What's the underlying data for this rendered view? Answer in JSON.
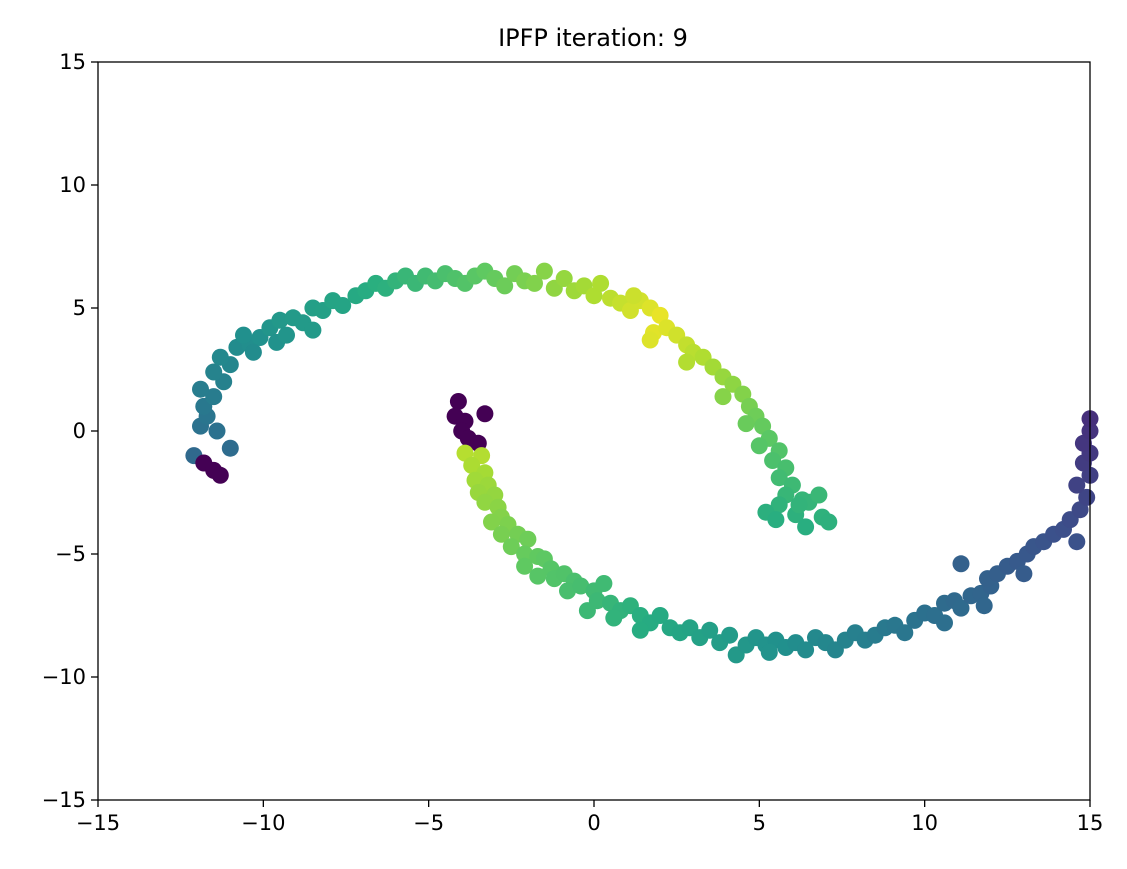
{
  "chart_data": {
    "type": "scatter",
    "title": "IPFP iteration: 9",
    "xlabel": "",
    "ylabel": "",
    "xlim": [
      -15,
      15
    ],
    "ylim": [
      -15,
      15
    ],
    "x_ticks": [
      -15,
      -10,
      -5,
      0,
      5,
      10,
      15
    ],
    "y_ticks": [
      -15,
      -10,
      -5,
      0,
      5,
      10,
      15
    ],
    "x_tick_labels": [
      "−15",
      "−10",
      "−5",
      "0",
      "5",
      "10",
      "15"
    ],
    "y_tick_labels": [
      "−15",
      "−10",
      "−5",
      "0",
      "5",
      "10",
      "15"
    ],
    "grid": false,
    "legend": "none",
    "colormap": "viridis",
    "clusters": [
      {
        "points": [
          [
            -12.1,
            -1.0
          ],
          [
            -11.8,
            -1.3
          ],
          [
            -11.5,
            -1.6
          ],
          [
            -11.3,
            -1.8
          ],
          [
            -11.9,
            0.2
          ],
          [
            -11.7,
            0.6
          ],
          [
            -11.4,
            0.0
          ],
          [
            -11.8,
            1.0
          ],
          [
            -11.5,
            1.4
          ],
          [
            -11.9,
            1.7
          ],
          [
            -11.2,
            2.0
          ],
          [
            -11.5,
            2.4
          ],
          [
            -11.0,
            2.7
          ],
          [
            -11.3,
            3.0
          ],
          [
            -11.0,
            -0.7
          ],
          [
            -10.8,
            3.4
          ],
          [
            -10.4,
            3.5
          ],
          [
            -10.6,
            3.9
          ],
          [
            -10.1,
            3.8
          ],
          [
            -10.3,
            3.2
          ],
          [
            -9.8,
            4.2
          ],
          [
            -9.5,
            4.5
          ],
          [
            -9.1,
            4.6
          ],
          [
            -9.6,
            3.6
          ],
          [
            -9.3,
            3.9
          ],
          [
            -8.8,
            4.4
          ],
          [
            -8.5,
            5.0
          ],
          [
            -8.2,
            4.9
          ],
          [
            -7.9,
            5.3
          ],
          [
            -7.6,
            5.1
          ],
          [
            -8.5,
            4.1
          ],
          [
            -7.2,
            5.5
          ],
          [
            -6.9,
            5.7
          ],
          [
            -6.6,
            6.0
          ],
          [
            -6.3,
            5.8
          ],
          [
            -6.0,
            6.1
          ],
          [
            -5.7,
            6.3
          ],
          [
            -5.4,
            6.0
          ],
          [
            -5.1,
            6.3
          ],
          [
            -4.8,
            6.1
          ],
          [
            -4.5,
            6.4
          ],
          [
            -4.2,
            6.2
          ],
          [
            -3.9,
            6.0
          ],
          [
            -3.6,
            6.3
          ],
          [
            -3.3,
            6.5
          ],
          [
            -3.0,
            6.2
          ],
          [
            -2.7,
            5.9
          ],
          [
            -2.4,
            6.4
          ],
          [
            -2.1,
            6.1
          ],
          [
            -1.8,
            6.0
          ],
          [
            -1.5,
            6.5
          ],
          [
            -1.2,
            5.8
          ],
          [
            -0.9,
            6.2
          ],
          [
            -0.6,
            5.7
          ],
          [
            -0.3,
            5.9
          ],
          [
            0.0,
            5.5
          ],
          [
            0.2,
            6.0
          ],
          [
            0.5,
            5.4
          ],
          [
            0.8,
            5.2
          ],
          [
            1.1,
            4.9
          ],
          [
            1.4,
            5.3
          ],
          [
            1.7,
            5.0
          ],
          [
            1.2,
            5.5
          ],
          [
            2.0,
            4.7
          ],
          [
            1.8,
            4.0
          ],
          [
            2.2,
            4.2
          ],
          [
            2.5,
            3.9
          ],
          [
            2.8,
            3.5
          ],
          [
            1.7,
            3.7
          ],
          [
            3.0,
            3.2
          ],
          [
            3.3,
            3.0
          ],
          [
            2.8,
            2.8
          ],
          [
            3.6,
            2.6
          ],
          [
            3.9,
            2.2
          ],
          [
            4.2,
            1.9
          ],
          [
            3.9,
            1.4
          ],
          [
            4.5,
            1.5
          ],
          [
            4.7,
            1.0
          ],
          [
            4.9,
            0.6
          ],
          [
            4.6,
            0.3
          ],
          [
            5.1,
            0.2
          ],
          [
            5.3,
            -0.3
          ],
          [
            5.0,
            -0.6
          ],
          [
            5.6,
            -0.8
          ],
          [
            5.4,
            -1.2
          ],
          [
            5.8,
            -1.5
          ],
          [
            5.6,
            -1.9
          ],
          [
            6.0,
            -2.2
          ],
          [
            5.8,
            -2.6
          ],
          [
            6.3,
            -2.8
          ],
          [
            5.6,
            -3.0
          ],
          [
            6.5,
            -2.9
          ],
          [
            6.1,
            -3.4
          ],
          [
            5.2,
            -3.3
          ],
          [
            5.5,
            -3.6
          ],
          [
            6.4,
            -3.9
          ],
          [
            6.9,
            -3.5
          ],
          [
            7.1,
            -3.7
          ],
          [
            6.8,
            -2.6
          ],
          [
            6.2,
            -3.0
          ]
        ]
      },
      {
        "points": [
          [
            -4.1,
            1.2
          ],
          [
            -4.2,
            0.6
          ],
          [
            -3.9,
            0.4
          ],
          [
            -4.0,
            0.0
          ],
          [
            -3.3,
            0.7
          ],
          [
            -3.8,
            -0.3
          ],
          [
            -3.5,
            -0.5
          ],
          [
            -3.9,
            -0.9
          ],
          [
            -3.4,
            -1.0
          ],
          [
            -3.7,
            -1.4
          ],
          [
            -3.3,
            -1.7
          ],
          [
            -3.6,
            -2.0
          ],
          [
            -3.2,
            -2.2
          ],
          [
            -3.5,
            -2.5
          ],
          [
            -3.0,
            -2.6
          ],
          [
            -3.3,
            -2.9
          ],
          [
            -2.9,
            -3.1
          ],
          [
            -2.8,
            -3.5
          ],
          [
            -3.1,
            -3.7
          ],
          [
            -2.6,
            -3.8
          ],
          [
            -2.8,
            -4.2
          ],
          [
            -2.3,
            -4.2
          ],
          [
            -2.0,
            -4.4
          ],
          [
            -2.5,
            -4.7
          ],
          [
            -2.1,
            -5.0
          ],
          [
            -1.7,
            -5.1
          ],
          [
            -2.1,
            -5.5
          ],
          [
            -1.5,
            -5.2
          ],
          [
            -1.3,
            -5.6
          ],
          [
            -1.7,
            -5.9
          ],
          [
            -1.2,
            -6.0
          ],
          [
            -0.9,
            -5.8
          ],
          [
            -0.6,
            -6.1
          ],
          [
            -0.8,
            -6.5
          ],
          [
            -0.4,
            -6.3
          ],
          [
            0.0,
            -6.5
          ],
          [
            0.3,
            -6.2
          ],
          [
            0.1,
            -6.9
          ],
          [
            -0.2,
            -7.3
          ],
          [
            0.5,
            -7.0
          ],
          [
            0.8,
            -7.3
          ],
          [
            1.1,
            -7.1
          ],
          [
            1.4,
            -7.5
          ],
          [
            0.6,
            -7.6
          ],
          [
            1.7,
            -7.8
          ],
          [
            2.0,
            -7.5
          ],
          [
            2.3,
            -8.0
          ],
          [
            1.4,
            -8.1
          ],
          [
            2.6,
            -8.2
          ],
          [
            2.9,
            -8.0
          ],
          [
            3.2,
            -8.4
          ],
          [
            3.5,
            -8.1
          ],
          [
            3.8,
            -8.6
          ],
          [
            4.1,
            -8.3
          ],
          [
            4.3,
            -9.1
          ],
          [
            4.6,
            -8.7
          ],
          [
            4.9,
            -8.4
          ],
          [
            5.2,
            -8.7
          ],
          [
            5.5,
            -8.5
          ],
          [
            5.3,
            -9.0
          ],
          [
            5.8,
            -8.8
          ],
          [
            6.1,
            -8.6
          ],
          [
            6.4,
            -8.9
          ],
          [
            6.7,
            -8.4
          ],
          [
            7.0,
            -8.6
          ],
          [
            7.3,
            -8.9
          ],
          [
            7.6,
            -8.5
          ],
          [
            7.9,
            -8.2
          ],
          [
            8.2,
            -8.5
          ],
          [
            8.5,
            -8.3
          ],
          [
            8.8,
            -8.0
          ],
          [
            9.1,
            -7.9
          ],
          [
            9.4,
            -8.2
          ],
          [
            9.7,
            -7.7
          ],
          [
            10.0,
            -7.4
          ],
          [
            10.3,
            -7.5
          ],
          [
            10.6,
            -7.0
          ],
          [
            10.9,
            -6.9
          ],
          [
            11.1,
            -7.2
          ],
          [
            10.6,
            -7.8
          ],
          [
            11.4,
            -6.7
          ],
          [
            11.7,
            -6.6
          ],
          [
            12.0,
            -6.3
          ],
          [
            11.8,
            -7.1
          ],
          [
            11.9,
            -6.0
          ],
          [
            12.2,
            -5.8
          ],
          [
            12.5,
            -5.5
          ],
          [
            12.8,
            -5.3
          ],
          [
            13.1,
            -5.0
          ],
          [
            13.3,
            -4.7
          ],
          [
            13.0,
            -5.8
          ],
          [
            13.6,
            -4.5
          ],
          [
            13.9,
            -4.2
          ],
          [
            14.2,
            -4.0
          ],
          [
            14.6,
            -4.5
          ],
          [
            14.4,
            -3.6
          ],
          [
            14.7,
            -3.2
          ],
          [
            14.9,
            -2.7
          ],
          [
            14.6,
            -2.2
          ],
          [
            15.0,
            -1.8
          ],
          [
            14.8,
            -1.3
          ],
          [
            15.0,
            -0.9
          ],
          [
            14.8,
            -0.5
          ],
          [
            15.0,
            0.0
          ],
          [
            15.0,
            0.5
          ],
          [
            11.1,
            -5.4
          ]
        ]
      }
    ]
  }
}
